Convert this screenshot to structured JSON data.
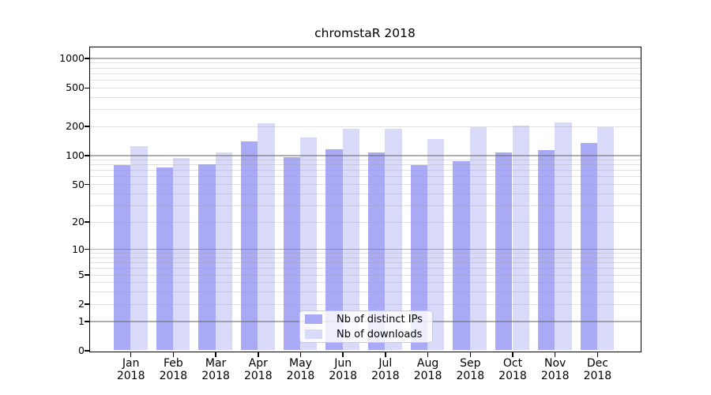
{
  "chart_data": {
    "type": "bar",
    "title": "chromstaR 2018",
    "categories": [
      "Jan",
      "Feb",
      "Mar",
      "Apr",
      "May",
      "Jun",
      "Jul",
      "Aug",
      "Sep",
      "Oct",
      "Nov",
      "Dec"
    ],
    "x_tick_year": "2018",
    "series": [
      {
        "name": "Nb of distinct IPs",
        "color": "#a9a9f5",
        "values": [
          79,
          74,
          80,
          139,
          96,
          115,
          107,
          79,
          87,
          106,
          114,
          134
        ]
      },
      {
        "name": "Nb of downloads",
        "color": "#d9d9f9",
        "values": [
          125,
          93,
          106,
          214,
          152,
          189,
          187,
          146,
          194,
          202,
          218,
          194
        ]
      }
    ],
    "xlabel": "",
    "ylabel": "",
    "y_axis": {
      "scale": "log1p",
      "tick_values": [
        0,
        1,
        2,
        5,
        10,
        20,
        50,
        100,
        200,
        500,
        1000
      ],
      "major_grid_values": [
        1,
        10,
        100,
        1000
      ],
      "minor_grid_values": [
        2,
        3,
        4,
        5,
        6,
        7,
        8,
        9,
        20,
        30,
        40,
        50,
        60,
        70,
        80,
        90,
        200,
        300,
        400,
        500,
        600,
        700,
        800,
        900
      ],
      "ylim": [
        0,
        1280
      ]
    },
    "legend": {
      "position": "lower center",
      "labels": [
        "Nb of distinct IPs",
        "Nb of downloads"
      ]
    },
    "grid": "on"
  },
  "colors": {
    "background": "#ffffff",
    "spine": "#000000",
    "major_grid": "rgba(110,110,110,0.55)",
    "minor_grid": "rgba(160,160,160,0.33)",
    "legend_border": "#cccccc",
    "bar_dark": "#a9a9f5",
    "bar_light": "#d9d9f9"
  }
}
